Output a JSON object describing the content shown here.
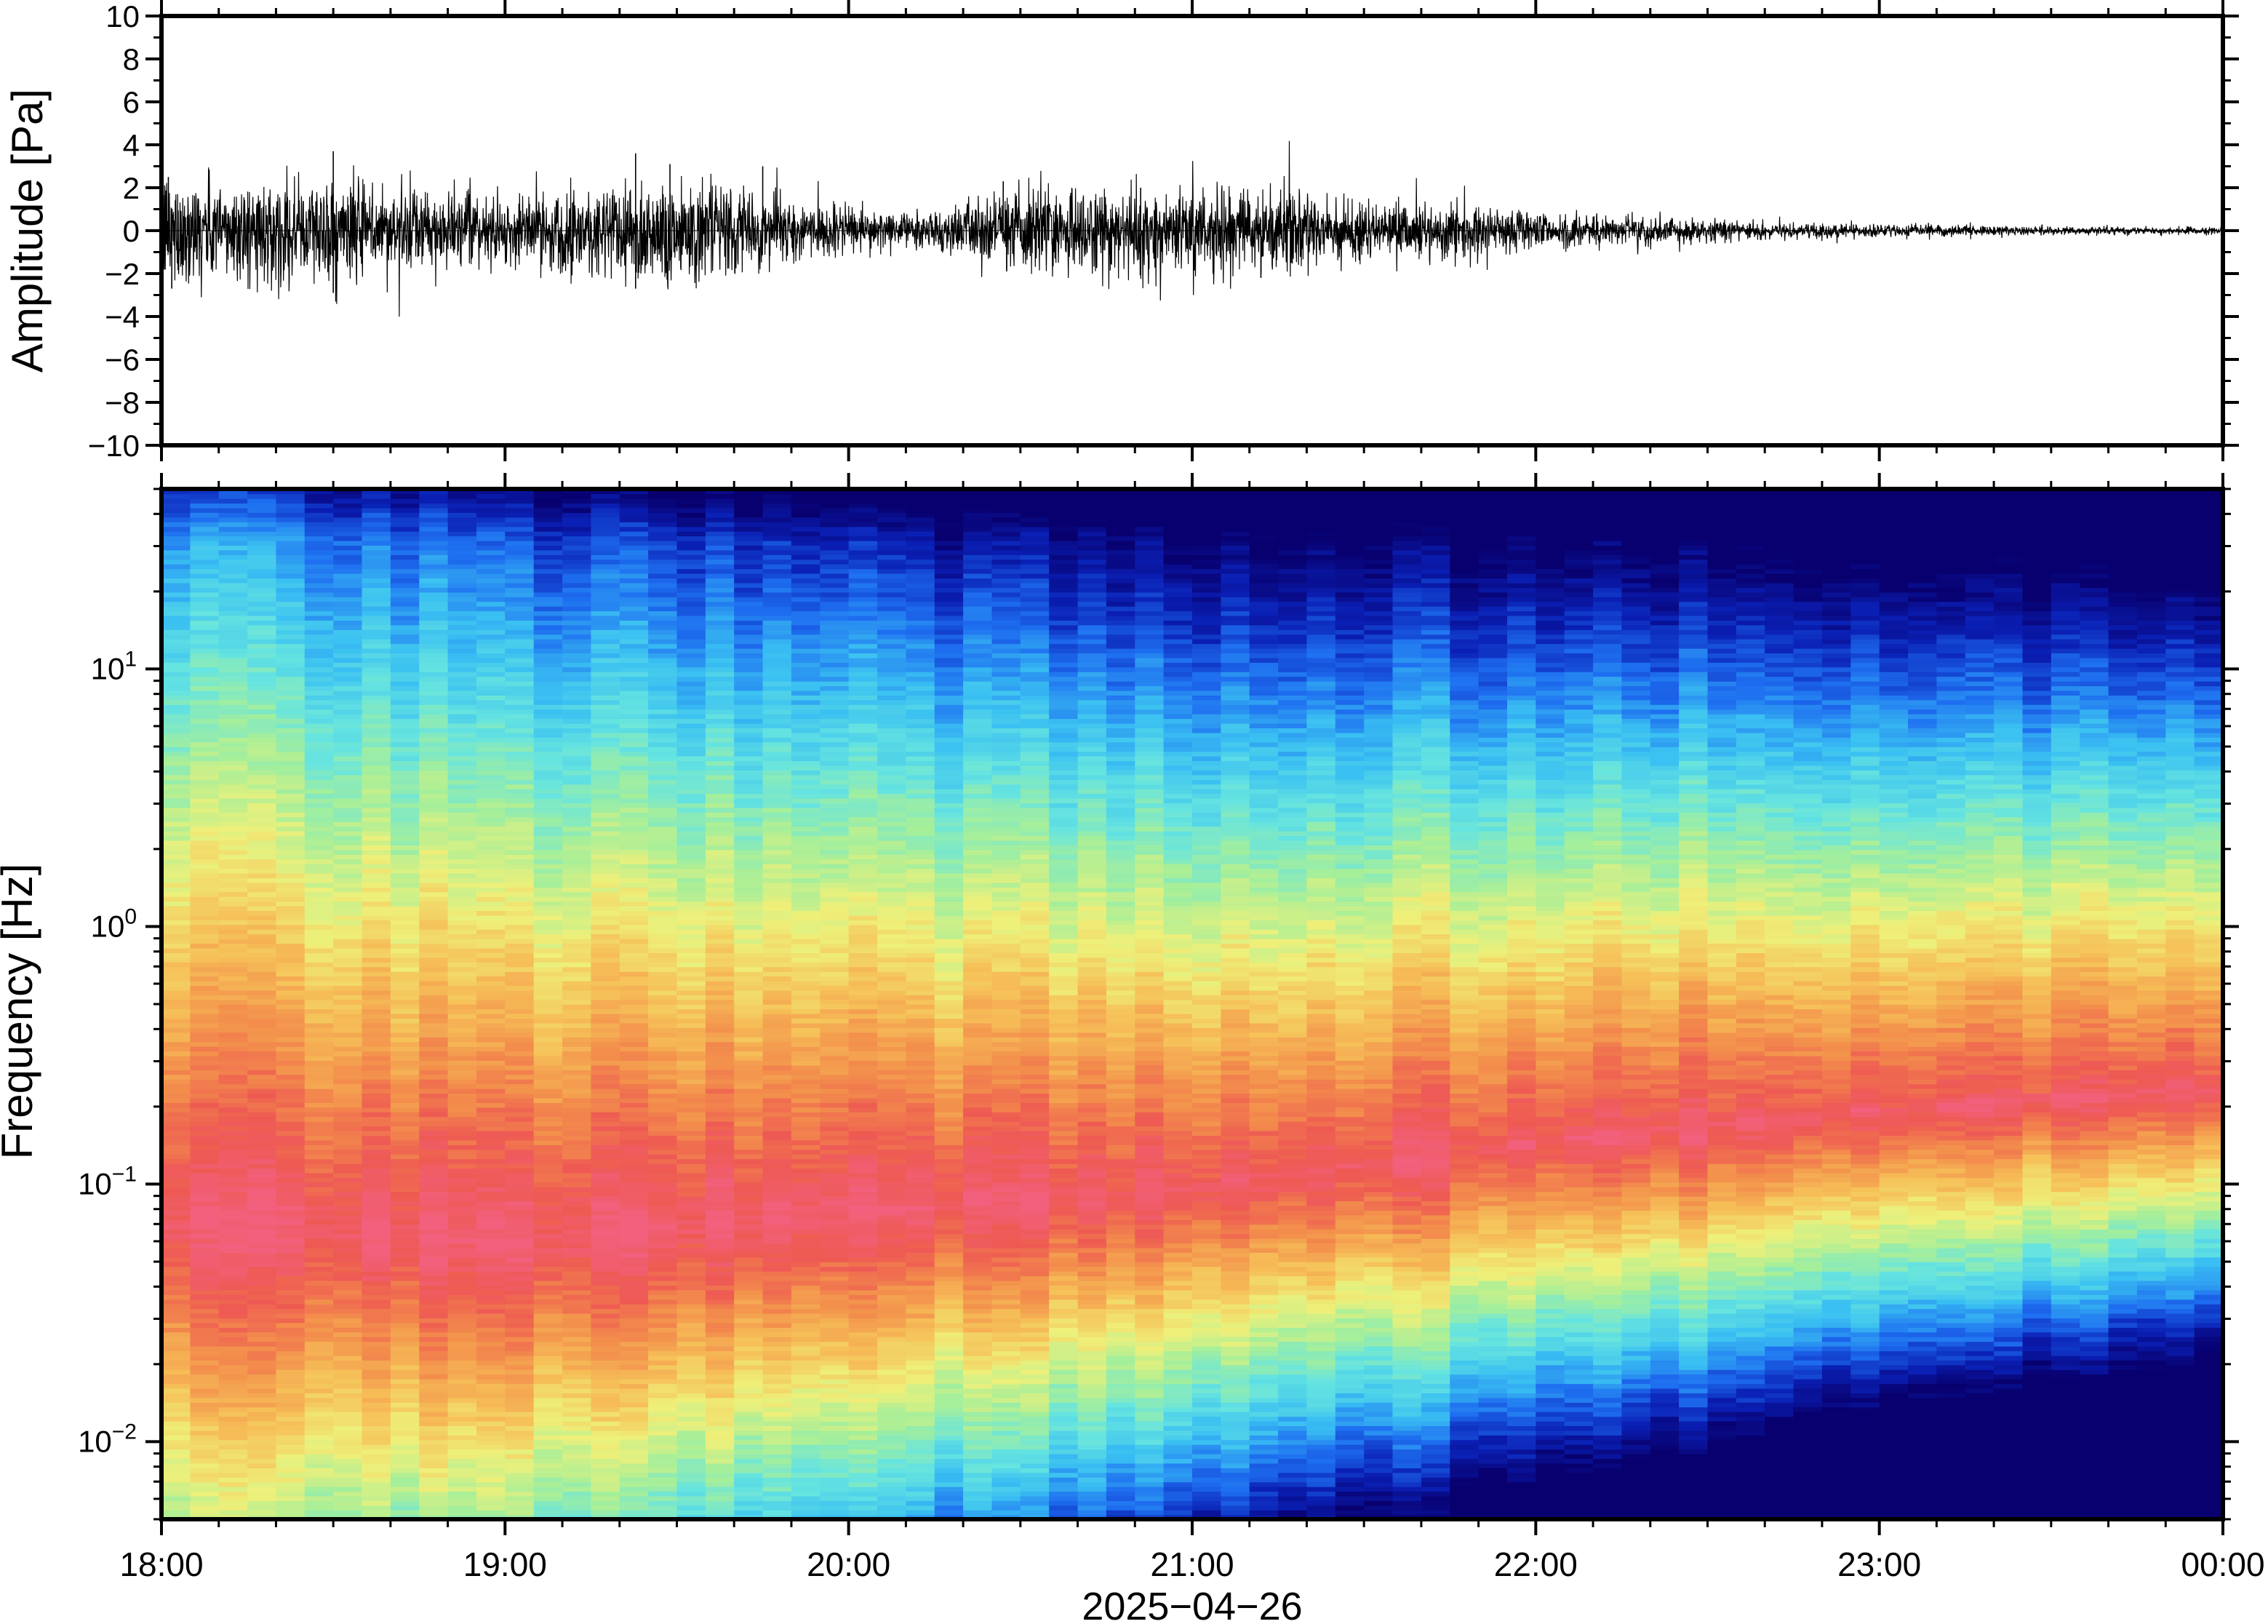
{
  "chart_data": [
    {
      "type": "line",
      "ylabel": "Amplitude [Pa]",
      "ylim": [
        -10,
        10
      ],
      "yticks": [
        10,
        8,
        6,
        4,
        2,
        0,
        -2,
        -4,
        -6,
        -8,
        -10
      ],
      "ytick_labels": [
        "10",
        "8",
        "6",
        "4",
        "2",
        "0",
        "−2",
        "−4",
        "−6",
        "−8",
        "−10"
      ],
      "x_range_hours": [
        18,
        24
      ],
      "envelope": {
        "x_hours": [
          18.0,
          18.25,
          18.5,
          18.75,
          19.0,
          19.25,
          19.5,
          19.75,
          20.0,
          20.25,
          20.5,
          20.75,
          21.0,
          21.25,
          21.5,
          21.75,
          22.0,
          22.25,
          22.5,
          22.75,
          23.0,
          23.25,
          23.5,
          23.75,
          24.0
        ],
        "amplitude_pa": [
          1.3,
          1.1,
          1.2,
          0.9,
          0.7,
          1.1,
          1.3,
          0.8,
          0.5,
          0.4,
          1.0,
          1.0,
          1.0,
          0.9,
          0.7,
          0.6,
          0.45,
          0.35,
          0.25,
          0.18,
          0.15,
          0.12,
          0.1,
          0.08,
          0.07
        ]
      },
      "peaks": [
        {
          "x_hours": 18.02,
          "value": 2.5
        },
        {
          "x_hours": 18.03,
          "value": -2.7
        },
        {
          "x_hours": 18.5,
          "value": 3.7
        },
        {
          "x_hours": 18.5,
          "value": -2.9
        },
        {
          "x_hours": 19.38,
          "value": 3.6
        },
        {
          "x_hours": 19.38,
          "value": -2.7
        },
        {
          "x_hours": 19.48,
          "value": 3.1
        },
        {
          "x_hours": 19.75,
          "value": 3.0
        },
        {
          "x_hours": 20.45,
          "value": 2.3
        },
        {
          "x_hours": 20.46,
          "value": -1.9
        },
        {
          "x_hours": 20.85,
          "value": 2.0
        },
        {
          "x_hours": 21.2,
          "value": -2.2
        }
      ]
    },
    {
      "type": "heatmap",
      "ylabel": "Frequency [Hz]",
      "xlabel": "2025−04−26",
      "y_scale": "log",
      "ylim": [
        0.005,
        50
      ],
      "yticks": [
        0.01,
        0.1,
        1,
        10
      ],
      "ytick_labels": [
        {
          "base": "10",
          "exp": "−2"
        },
        {
          "base": "10",
          "exp": "−1"
        },
        {
          "base": "10",
          "exp": "0"
        },
        {
          "base": "10",
          "exp": "1"
        }
      ],
      "xticks": [
        "18:00",
        "19:00",
        "20:00",
        "21:00",
        "22:00",
        "23:00",
        "00:00"
      ],
      "x_range_hours": [
        18,
        24
      ],
      "time_columns": 72,
      "colormap": [
        "#08006e",
        "#0a1fb4",
        "#1e6ef0",
        "#3ac0f2",
        "#66e4e0",
        "#a6ef9a",
        "#eef07a",
        "#f6c058",
        "#f3904c",
        "#ee5a52",
        "#f2607e"
      ],
      "band_peak_frequency_hz": {
        "x_hours": [
          18,
          19,
          20,
          21,
          22,
          23,
          24
        ],
        "values": [
          0.07,
          0.06,
          0.08,
          0.1,
          0.15,
          0.2,
          0.25
        ]
      }
    }
  ]
}
